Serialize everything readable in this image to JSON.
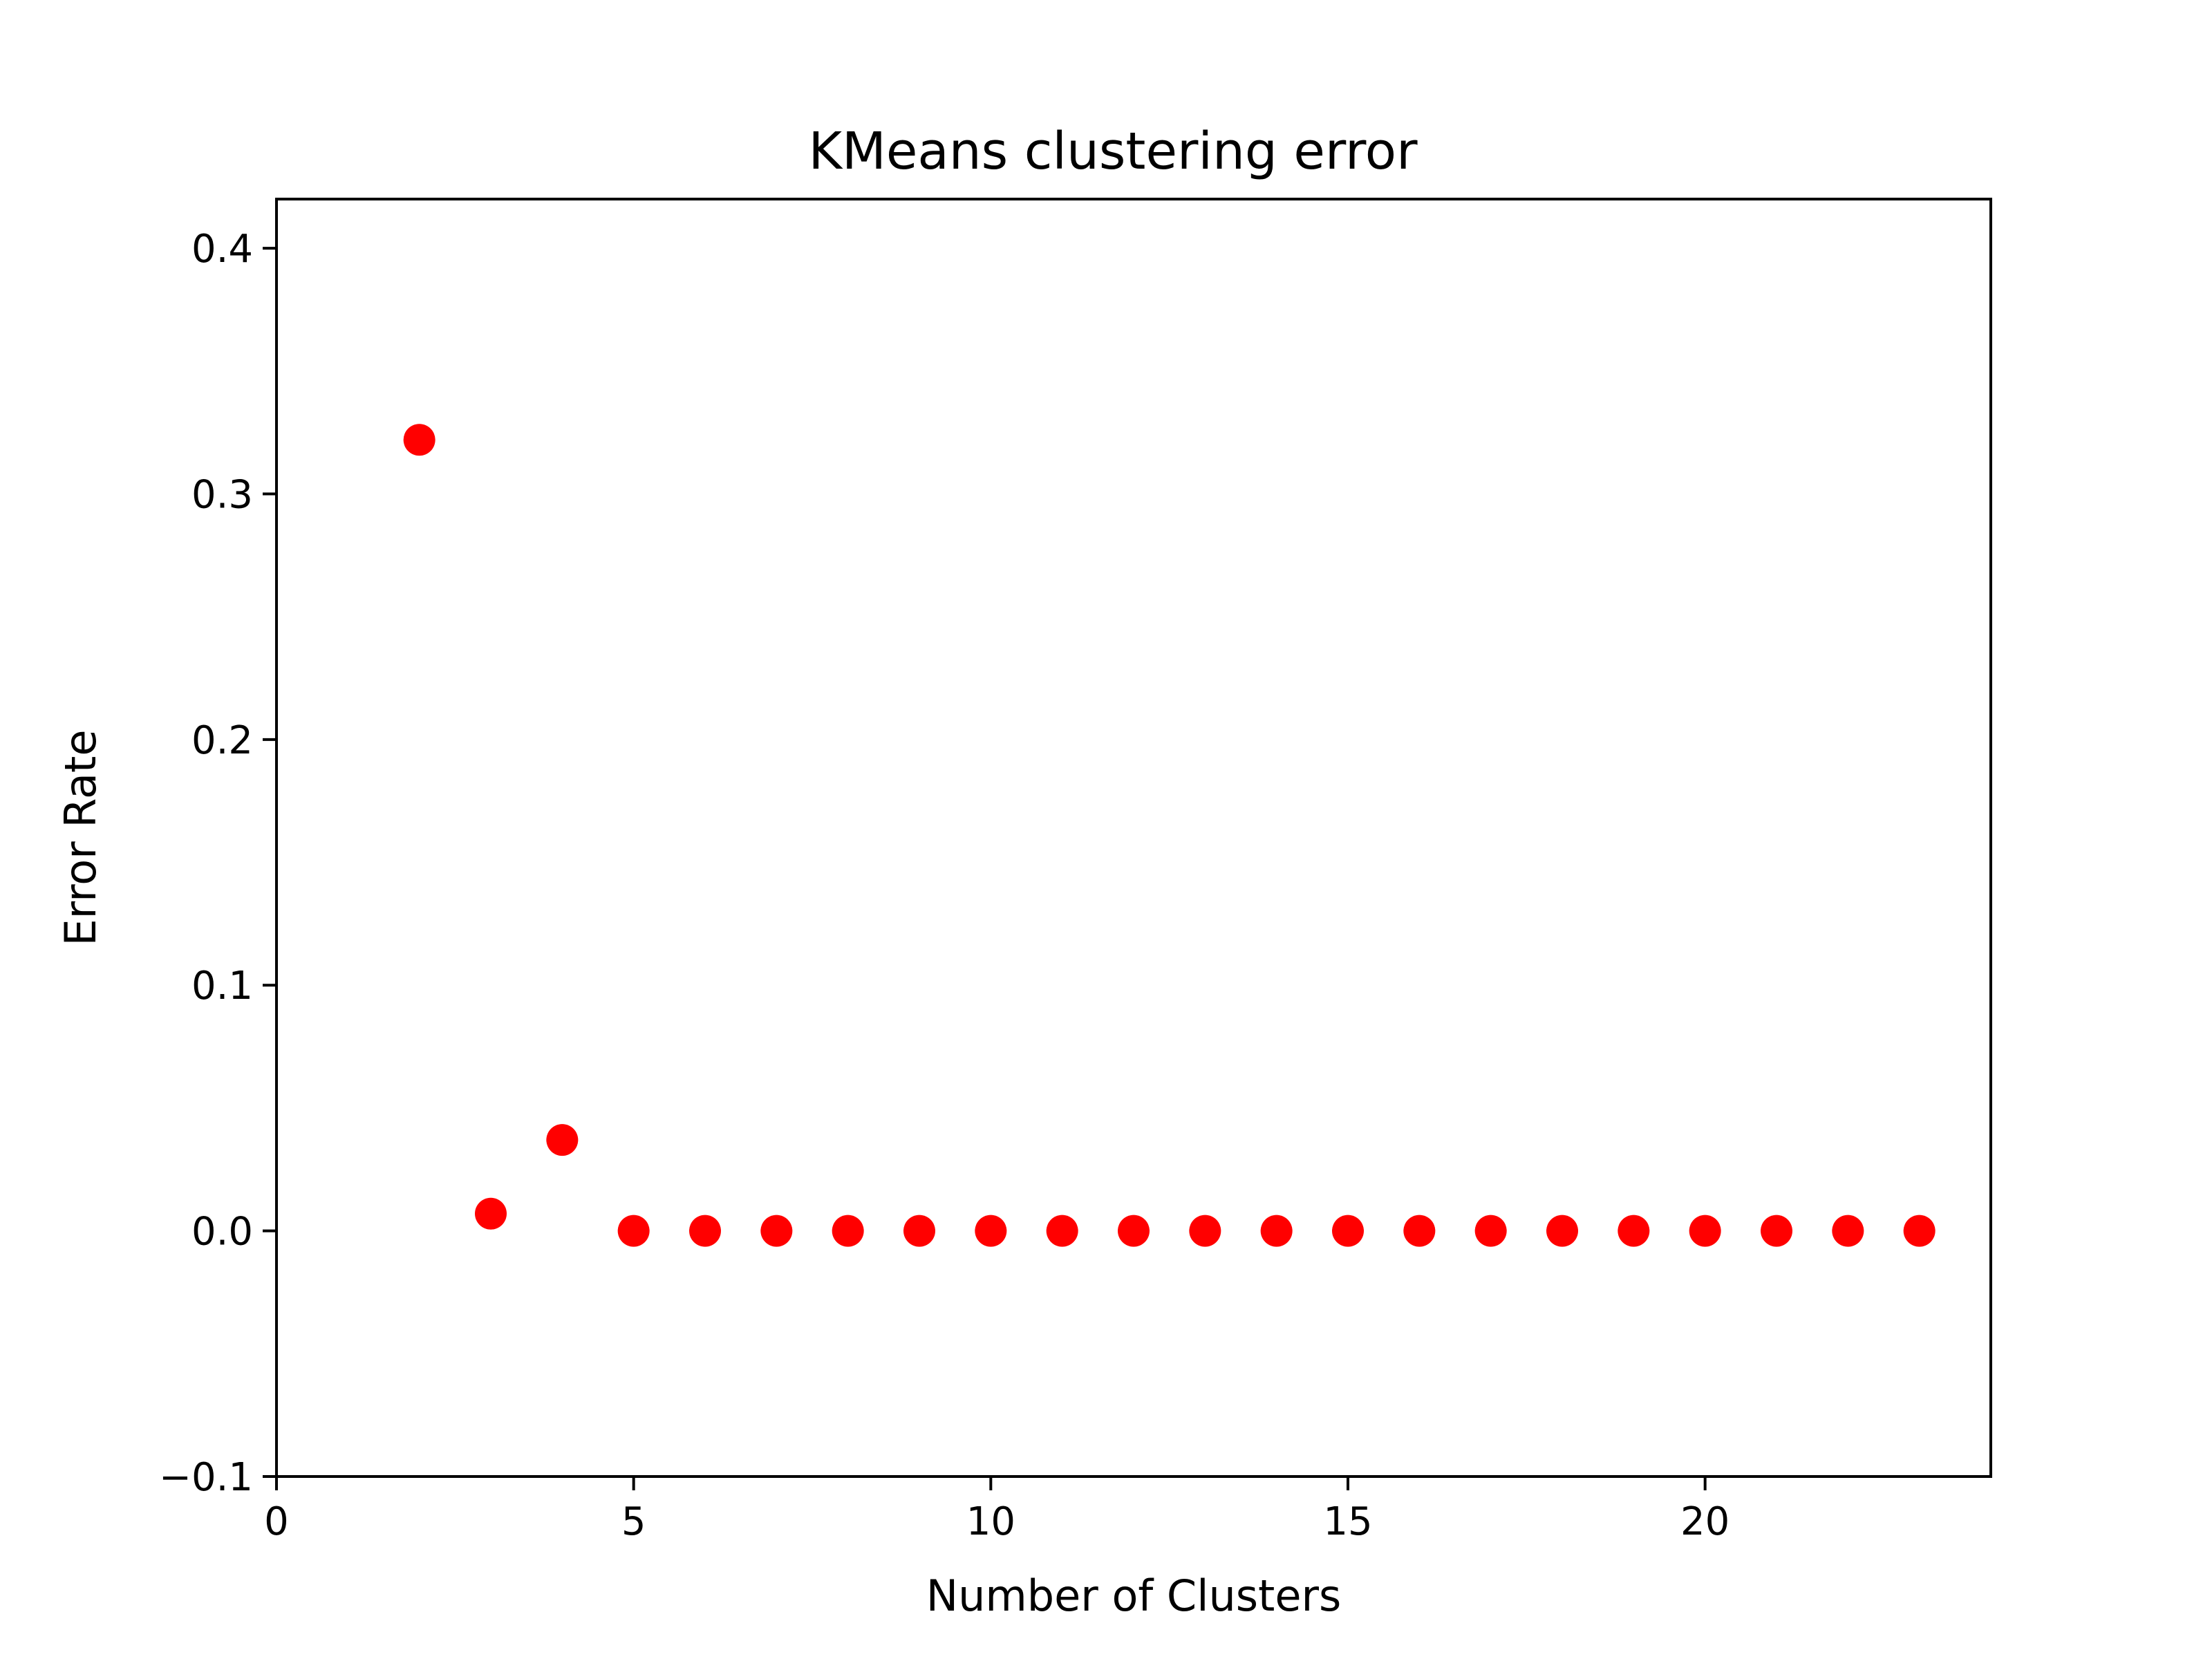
{
  "chart_data": {
    "type": "scatter",
    "title": "KMeans clustering error",
    "xlabel": "Number of Clusters",
    "ylabel": "Error Rate",
    "xlim": [
      0,
      24
    ],
    "ylim": [
      -0.1,
      0.42
    ],
    "xticks": [
      0,
      5,
      10,
      15,
      20
    ],
    "xtick_labels": [
      "0",
      "5",
      "10",
      "15",
      "20"
    ],
    "yticks": [
      -0.1,
      0.0,
      0.1,
      0.2,
      0.3,
      0.4
    ],
    "ytick_labels": [
      "−0.1",
      "0.0",
      "0.1",
      "0.2",
      "0.3",
      "0.4"
    ],
    "grid": false,
    "marker_color": "#ff0000",
    "series": [
      {
        "x": [
          2,
          3,
          4,
          5,
          6,
          7,
          8,
          9,
          10,
          11,
          12,
          13,
          14,
          15,
          16,
          17,
          18,
          19,
          20,
          21,
          22,
          23
        ],
        "y": [
          0.322,
          0.007,
          0.037,
          0.0,
          0.0,
          0.0,
          0.0,
          0.0,
          0.0,
          0.0,
          0.0,
          0.0,
          0.0,
          0.0,
          0.0,
          0.0,
          0.0,
          0.0,
          0.0,
          0.0,
          0.0,
          0.0
        ]
      }
    ]
  }
}
